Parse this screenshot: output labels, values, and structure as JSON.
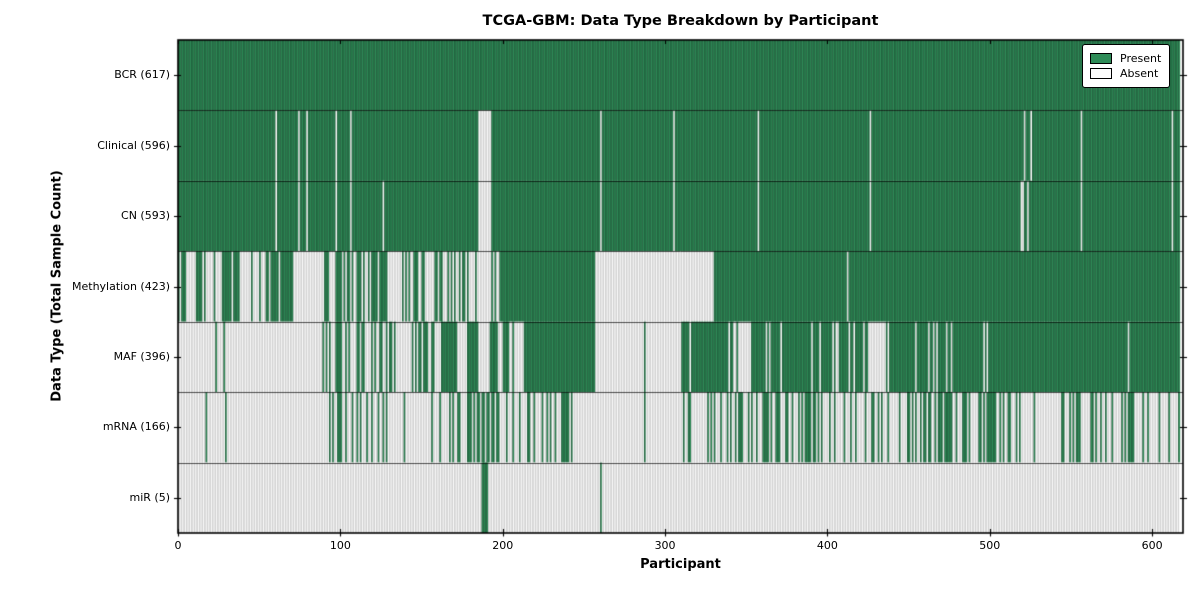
{
  "chart_data": {
    "type": "heatmap",
    "title": "TCGA-GBM: Data Type Breakdown by Participant",
    "xlabel": "Participant",
    "ylabel": "Data Type (Total Sample Count)",
    "x_ticks": [
      0,
      100,
      200,
      300,
      400,
      500,
      600
    ],
    "x_range": [
      0,
      619
    ],
    "n_participants": 617,
    "grid": false,
    "legend_position": "upper right",
    "legend": {
      "present_label": "Present",
      "absent_label": "Absent"
    },
    "colors": {
      "present_fill": "#2e8b57",
      "absent_fill": "#fcfcfc",
      "frame": "#000000",
      "background": "#ffffff"
    },
    "rows": [
      {
        "label": "BCR (617)",
        "data_type": "bcr",
        "present_count": 617,
        "absent": [],
        "mixed": []
      },
      {
        "label": "Clinical (596)",
        "data_type": "clinical",
        "present_count": 596,
        "absent": [
          [
            60,
            61
          ],
          [
            74,
            75
          ],
          [
            79,
            80
          ],
          [
            97,
            98
          ],
          [
            106,
            107
          ],
          [
            185,
            193
          ],
          [
            260,
            261
          ],
          [
            305,
            306
          ],
          [
            357,
            358
          ],
          [
            426,
            427
          ],
          [
            521,
            522
          ],
          [
            525,
            526
          ],
          [
            556,
            557
          ],
          [
            612,
            613
          ]
        ],
        "mixed": []
      },
      {
        "label": "CN (593)",
        "data_type": "cn",
        "present_count": 593,
        "absent": [
          [
            60,
            61
          ],
          [
            74,
            75
          ],
          [
            79,
            80
          ],
          [
            97,
            98
          ],
          [
            106,
            107
          ],
          [
            126,
            127
          ],
          [
            185,
            193
          ],
          [
            260,
            261
          ],
          [
            305,
            306
          ],
          [
            357,
            358
          ],
          [
            426,
            427
          ],
          [
            519,
            521
          ],
          [
            523,
            524
          ],
          [
            556,
            557
          ],
          [
            612,
            613
          ]
        ],
        "mixed": []
      },
      {
        "label": "Methylation (423)",
        "data_type": "methylation",
        "present_count": 423,
        "absent": [
          [
            8,
            11
          ],
          [
            21,
            22
          ],
          [
            24,
            27
          ],
          [
            62,
            63
          ],
          [
            71,
            90
          ],
          [
            129,
            135
          ],
          [
            185,
            193
          ],
          [
            257,
            330
          ],
          [
            412,
            413
          ]
        ],
        "mixed": [
          [
            0,
            47,
            0.62
          ],
          [
            47,
            57,
            0.4
          ],
          [
            90,
            129,
            0.65
          ],
          [
            135,
            162,
            0.45
          ],
          [
            162,
            185,
            0.35
          ],
          [
            193,
            198,
            0.5
          ]
        ]
      },
      {
        "label": "MAF (396)",
        "data_type": "maf",
        "present_count": 396,
        "absent": [
          [
            0,
            23
          ],
          [
            24,
            28
          ],
          [
            29,
            88
          ],
          [
            135,
            144
          ],
          [
            158,
            162
          ],
          [
            172,
            178
          ],
          [
            185,
            192
          ],
          [
            207,
            213
          ],
          [
            257,
            287
          ],
          [
            288,
            310
          ],
          [
            345,
            353
          ],
          [
            425,
            436
          ]
        ],
        "mixed": [
          [
            88,
            107,
            0.6
          ],
          [
            107,
            125,
            0.4
          ],
          [
            125,
            135,
            0.7
          ],
          [
            144,
            158,
            0.8
          ],
          [
            192,
            207,
            0.75
          ],
          [
            310,
            345,
            0.8
          ],
          [
            353,
            425,
            0.87
          ],
          [
            436,
            617,
            0.92
          ]
        ]
      },
      {
        "label": "mRNA (166)",
        "data_type": "mrna",
        "present_count": 166,
        "absent": [
          [
            0,
            17
          ],
          [
            18,
            29
          ],
          [
            30,
            92
          ],
          [
            245,
            287
          ],
          [
            288,
            310
          ]
        ],
        "mixed": [
          [
            92,
            113,
            0.5
          ],
          [
            113,
            130,
            0.25
          ],
          [
            130,
            160,
            0.2
          ],
          [
            160,
            178,
            0.25
          ],
          [
            178,
            198,
            0.5
          ],
          [
            198,
            215,
            0.25
          ],
          [
            215,
            245,
            0.55
          ],
          [
            310,
            596,
            0.38
          ],
          [
            596,
            617,
            0.1
          ]
        ]
      },
      {
        "label": "miR (5)",
        "data_type": "mir",
        "present_count": 5,
        "absent": [
          [
            0,
            187
          ],
          [
            191,
            260
          ],
          [
            261,
            617
          ]
        ],
        "mixed": []
      }
    ]
  }
}
